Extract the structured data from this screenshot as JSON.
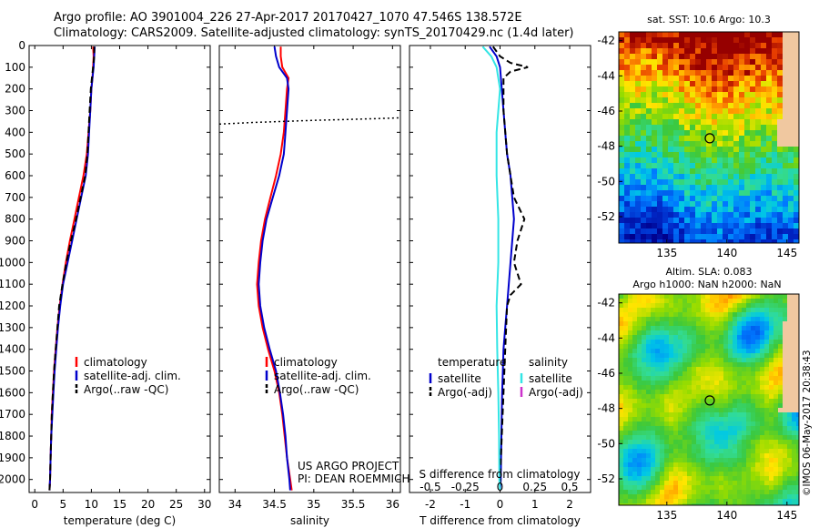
{
  "header": {
    "line1": "Argo profile: AO 3901004_226 27-Apr-2017 20170427_1070 47.546S 138.572E",
    "line2": "Climatology: CARS2009. Satellite-adjusted climatology: synTS_20170429.nc (1.4d later)"
  },
  "footer_stamp": "©IMOS 06-May-2017 20:38:43",
  "colors": {
    "climatology": "#ff0000",
    "satellite": "#0000cc",
    "argo": "#000000",
    "satellite_salinity": "#33e5e5",
    "argo_salinity": "#cc33cc"
  },
  "chart_data": [
    {
      "type": "line",
      "panel": "temperature",
      "xlabel": "temperature (deg C)",
      "ylabel": "",
      "xlim": [
        -1,
        31
      ],
      "ylim": [
        2060,
        0
      ],
      "x_ticks": [
        "0",
        "5",
        "10",
        "15",
        "20",
        "25",
        "30"
      ],
      "y_ticks": [
        "0",
        "100",
        "200",
        "300",
        "400",
        "500",
        "600",
        "700",
        "800",
        "900",
        "1000",
        "1100",
        "1200",
        "1300",
        "1400",
        "1500",
        "1600",
        "1700",
        "1800",
        "1900",
        "2000"
      ],
      "legend": [
        "climatology",
        "satellite-adj. clim.",
        "Argo(..raw -QC)"
      ],
      "series": [
        {
          "name": "climatology",
          "color": "#ff0000",
          "points": [
            [
              10.3,
              5
            ],
            [
              10.4,
              50
            ],
            [
              10.3,
              100
            ],
            [
              10.2,
              150
            ],
            [
              10.0,
              200
            ],
            [
              9.8,
              300
            ],
            [
              9.5,
              400
            ],
            [
              9.2,
              500
            ],
            [
              8.6,
              600
            ],
            [
              7.8,
              700
            ],
            [
              7.0,
              800
            ],
            [
              6.2,
              900
            ],
            [
              5.5,
              1000
            ],
            [
              4.9,
              1100
            ],
            [
              4.4,
              1200
            ],
            [
              4.0,
              1300
            ],
            [
              3.7,
              1400
            ],
            [
              3.4,
              1500
            ],
            [
              3.2,
              1600
            ],
            [
              3.0,
              1700
            ],
            [
              2.9,
              1800
            ],
            [
              2.8,
              1900
            ],
            [
              2.7,
              2000
            ],
            [
              2.6,
              2050
            ]
          ]
        },
        {
          "name": "satellite-adj. clim.",
          "color": "#0000cc",
          "points": [
            [
              10.6,
              5
            ],
            [
              10.5,
              50
            ],
            [
              10.4,
              100
            ],
            [
              10.2,
              150
            ],
            [
              10.0,
              200
            ],
            [
              9.8,
              300
            ],
            [
              9.6,
              400
            ],
            [
              9.4,
              500
            ],
            [
              9.0,
              600
            ],
            [
              8.2,
              700
            ],
            [
              7.4,
              800
            ],
            [
              6.6,
              900
            ],
            [
              5.8,
              1000
            ],
            [
              5.0,
              1100
            ],
            [
              4.5,
              1200
            ],
            [
              4.1,
              1300
            ],
            [
              3.8,
              1400
            ],
            [
              3.5,
              1500
            ],
            [
              3.3,
              1600
            ],
            [
              3.1,
              1700
            ],
            [
              2.9,
              1800
            ],
            [
              2.8,
              1900
            ],
            [
              2.7,
              2000
            ],
            [
              2.6,
              2050
            ]
          ]
        },
        {
          "name": "Argo(..raw -QC)",
          "color": "#000000",
          "dash": true,
          "points": [
            [
              10.5,
              5
            ],
            [
              10.5,
              50
            ],
            [
              10.3,
              100
            ],
            [
              10.1,
              150
            ],
            [
              9.9,
              200
            ],
            [
              9.7,
              300
            ],
            [
              9.5,
              400
            ],
            [
              9.3,
              500
            ],
            [
              8.9,
              600
            ],
            [
              8.1,
              700
            ],
            [
              7.3,
              800
            ],
            [
              6.4,
              900
            ],
            [
              5.6,
              1000
            ],
            [
              4.9,
              1100
            ],
            [
              4.3,
              1200
            ],
            [
              4.0,
              1300
            ],
            [
              3.7,
              1400
            ],
            [
              3.4,
              1500
            ],
            [
              3.2,
              1600
            ],
            [
              3.0,
              1700
            ],
            [
              2.9,
              1800
            ],
            [
              2.8,
              1900
            ],
            [
              2.7,
              2000
            ],
            [
              2.6,
              2050
            ]
          ]
        }
      ]
    },
    {
      "type": "line",
      "panel": "salinity",
      "xlabel": "salinity",
      "xlim": [
        33.8,
        36.1
      ],
      "ylim": [
        2060,
        0
      ],
      "x_ticks": [
        "34",
        "34.5",
        "35",
        "35.5",
        "36"
      ],
      "legend": [
        "climatology",
        "satellite-adj. clim.",
        "Argo(..raw -QC)"
      ],
      "annotation": [
        "US ARGO PROJECT",
        "PI: DEAN ROEMMICH"
      ],
      "series": [
        {
          "name": "climatology",
          "color": "#ff0000",
          "points": [
            [
              34.58,
              5
            ],
            [
              34.58,
              50
            ],
            [
              34.6,
              100
            ],
            [
              34.68,
              150
            ],
            [
              34.66,
              200
            ],
            [
              34.64,
              300
            ],
            [
              34.62,
              400
            ],
            [
              34.58,
              500
            ],
            [
              34.52,
              600
            ],
            [
              34.45,
              700
            ],
            [
              34.38,
              800
            ],
            [
              34.33,
              900
            ],
            [
              34.3,
              1000
            ],
            [
              34.28,
              1100
            ],
            [
              34.3,
              1200
            ],
            [
              34.35,
              1300
            ],
            [
              34.42,
              1400
            ],
            [
              34.5,
              1500
            ],
            [
              34.56,
              1600
            ],
            [
              34.6,
              1700
            ],
            [
              34.63,
              1800
            ],
            [
              34.66,
              1900
            ],
            [
              34.7,
              2000
            ],
            [
              34.72,
              2050
            ]
          ]
        },
        {
          "name": "satellite-adj. clim.",
          "color": "#0000cc",
          "points": [
            [
              34.5,
              5
            ],
            [
              34.52,
              50
            ],
            [
              34.56,
              100
            ],
            [
              34.66,
              150
            ],
            [
              34.68,
              200
            ],
            [
              34.66,
              300
            ],
            [
              34.64,
              400
            ],
            [
              34.62,
              500
            ],
            [
              34.56,
              600
            ],
            [
              34.48,
              700
            ],
            [
              34.4,
              800
            ],
            [
              34.35,
              900
            ],
            [
              34.32,
              1000
            ],
            [
              34.3,
              1100
            ],
            [
              34.32,
              1200
            ],
            [
              34.37,
              1300
            ],
            [
              34.44,
              1400
            ],
            [
              34.52,
              1500
            ],
            [
              34.57,
              1600
            ],
            [
              34.61,
              1700
            ],
            [
              34.64,
              1800
            ],
            [
              34.66,
              1900
            ],
            [
              34.69,
              2000
            ],
            [
              34.7,
              2050
            ]
          ]
        },
        {
          "name": "Argo(..raw -QC)",
          "color": "#000000",
          "dotted": true,
          "points": [
            [
              33.8,
              362
            ],
            [
              34.2,
              355
            ],
            [
              34.6,
              350
            ],
            [
              35.0,
              345
            ],
            [
              35.4,
              341
            ],
            [
              35.8,
              337
            ],
            [
              36.1,
              333
            ]
          ]
        }
      ]
    },
    {
      "type": "line",
      "panel": "difference",
      "xlabel": "T difference from climatology",
      "top_label": "S difference from climatology",
      "xlim": [
        -2.6,
        2.6
      ],
      "ylim": [
        2060,
        0
      ],
      "x_ticks": [
        "-2",
        "-1",
        "0",
        "1",
        "2"
      ],
      "top_ticks": [
        "-0.5",
        "-0.25",
        "0",
        "0.25",
        "0.5"
      ],
      "legend": {
        "temperature_title": "temperature",
        "temperature": [
          "satellite",
          "Argo(-adj)"
        ],
        "salinity_title": "salinity",
        "salinity": [
          "satellite",
          "Argo(-adj)"
        ]
      },
      "series": [
        {
          "name": "temperature satellite",
          "color": "#0000cc",
          "points": [
            [
              -0.3,
              5
            ],
            [
              -0.1,
              50
            ],
            [
              0.0,
              100
            ],
            [
              0.05,
              200
            ],
            [
              0.1,
              300
            ],
            [
              0.15,
              400
            ],
            [
              0.2,
              500
            ],
            [
              0.3,
              600
            ],
            [
              0.35,
              700
            ],
            [
              0.4,
              800
            ],
            [
              0.35,
              900
            ],
            [
              0.3,
              1000
            ],
            [
              0.25,
              1100
            ],
            [
              0.2,
              1200
            ],
            [
              0.15,
              1300
            ],
            [
              0.1,
              1400
            ],
            [
              0.08,
              1500
            ],
            [
              0.06,
              1600
            ],
            [
              0.05,
              1700
            ],
            [
              0.04,
              1800
            ],
            [
              0.03,
              1900
            ],
            [
              0.02,
              2000
            ],
            [
              0.0,
              2050
            ]
          ]
        },
        {
          "name": "temperature Argo(-adj)",
          "color": "#000000",
          "dash": true,
          "points": [
            [
              -0.2,
              5
            ],
            [
              0.0,
              50
            ],
            [
              0.3,
              80
            ],
            [
              0.8,
              100
            ],
            [
              0.3,
              120
            ],
            [
              0.1,
              150
            ],
            [
              0.1,
              300
            ],
            [
              0.2,
              500
            ],
            [
              0.4,
              700
            ],
            [
              0.7,
              800
            ],
            [
              0.5,
              900
            ],
            [
              0.4,
              1000
            ],
            [
              0.6,
              1100
            ],
            [
              0.3,
              1150
            ],
            [
              0.2,
              1200
            ],
            [
              0.15,
              1400
            ],
            [
              0.1,
              1600
            ],
            [
              0.05,
              1800
            ],
            [
              0.0,
              2000
            ],
            [
              0.0,
              2050
            ]
          ]
        },
        {
          "name": "salinity satellite",
          "color": "#33e5e5",
          "points": [
            [
              -0.5,
              5
            ],
            [
              -0.25,
              50
            ],
            [
              -0.1,
              100
            ],
            [
              0.0,
              200
            ],
            [
              -0.1,
              400
            ],
            [
              -0.1,
              600
            ],
            [
              -0.05,
              800
            ],
            [
              -0.05,
              1000
            ],
            [
              -0.1,
              1200
            ],
            [
              -0.08,
              1400
            ],
            [
              -0.05,
              1600
            ],
            [
              -0.03,
              1800
            ],
            [
              -0.02,
              2000
            ],
            [
              0.0,
              2050
            ]
          ]
        }
      ]
    },
    {
      "type": "heatmap",
      "panel": "sst_map",
      "title": "sat. SST: 10.6 Argo: 10.3",
      "x_ticks": [
        "135",
        "140",
        "145"
      ],
      "y_ticks": [
        "-42",
        "-44",
        "-46",
        "-48",
        "-50",
        "-52"
      ],
      "xlim": [
        131,
        146
      ],
      "ylim": [
        -53.5,
        -41.5
      ],
      "argo_position": {
        "lon": 138.572,
        "lat": -47.546
      }
    },
    {
      "type": "heatmap",
      "panel": "sla_map",
      "title": "Altim. SLA: 0.083",
      "subtitle": "Argo h1000: NaN h2000: NaN",
      "x_ticks": [
        "135",
        "140",
        "145"
      ],
      "y_ticks": [
        "-42",
        "-44",
        "-46",
        "-48",
        "-50",
        "-52"
      ],
      "xlim": [
        131,
        146
      ],
      "ylim": [
        -53.5,
        -41.5
      ],
      "argo_position": {
        "lon": 138.572,
        "lat": -47.546
      }
    }
  ]
}
